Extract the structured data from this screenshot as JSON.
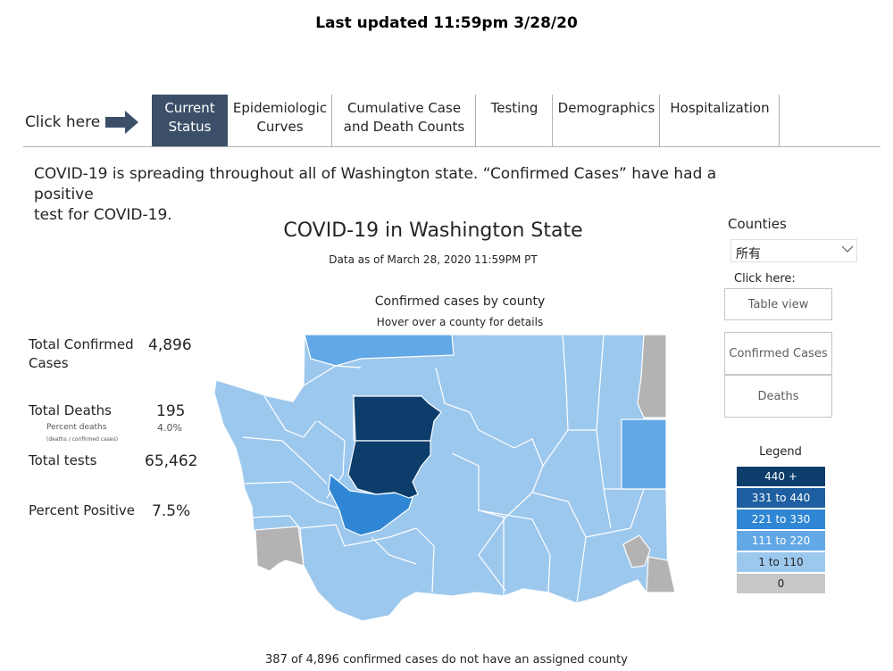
{
  "header": {
    "last_updated": "Last updated 11:59pm 3/28/20"
  },
  "nav": {
    "click_here": "Click here",
    "tabs": [
      {
        "line1": "Current",
        "line2": "Status",
        "active": true
      },
      {
        "line1": "Epidemiologic",
        "line2": "Curves",
        "active": false
      },
      {
        "line1": "Cumulative Case",
        "line2": "and Death Counts",
        "active": false
      },
      {
        "line1": "Testing",
        "line2": "",
        "active": false
      },
      {
        "line1": "Demographics",
        "line2": "",
        "active": false
      },
      {
        "line1": "Hospitalization",
        "line2": "",
        "active": false
      }
    ]
  },
  "intro": {
    "line1": "COVID-19 is spreading throughout all of Washington state. “Confirmed Cases” have had a positive",
    "line2": "test for COVID-19."
  },
  "map": {
    "title": "COVID-19 in Washington State",
    "subtitle": "Data as of March 28, 2020 11:59PM PT",
    "heading": "Confirmed cases by county",
    "hint": "Hover over a county for details"
  },
  "stats": {
    "total_confirmed_label_1": "Total Confirmed",
    "total_confirmed_label_2": "Cases",
    "total_confirmed_value": "4,896",
    "total_deaths_label": "Total Deaths",
    "total_deaths_value": "195",
    "percent_deaths_label": "Percent deaths",
    "percent_deaths_note": "(deaths / confirmed cases)",
    "percent_deaths_value": "4.0%",
    "total_tests_label": "Total tests",
    "total_tests_value": "65,462",
    "percent_positive_label": "Percent Positive",
    "percent_positive_value": "7.5%"
  },
  "panel": {
    "counties_label": "Counties",
    "counties_selected": "所有",
    "click_here": "Click here:",
    "table_view": "Table view",
    "confirmed_cases": "Confirmed Cases",
    "deaths": "Deaths"
  },
  "legend": {
    "title": "Legend",
    "items": [
      {
        "label": "440 +",
        "color": "#0c3d6b"
      },
      {
        "label": "331 to 440",
        "color": "#1d5fa0"
      },
      {
        "label": "221 to 330",
        "color": "#2f86d4"
      },
      {
        "label": "111 to 220",
        "color": "#62a8e6"
      },
      {
        "label": "1 to 110",
        "color": "#9dc8ee"
      },
      {
        "label": "0",
        "color": "#c8c8c8"
      }
    ]
  },
  "footnote": "387 of 4,896 confirmed cases do not have an assigned county"
}
